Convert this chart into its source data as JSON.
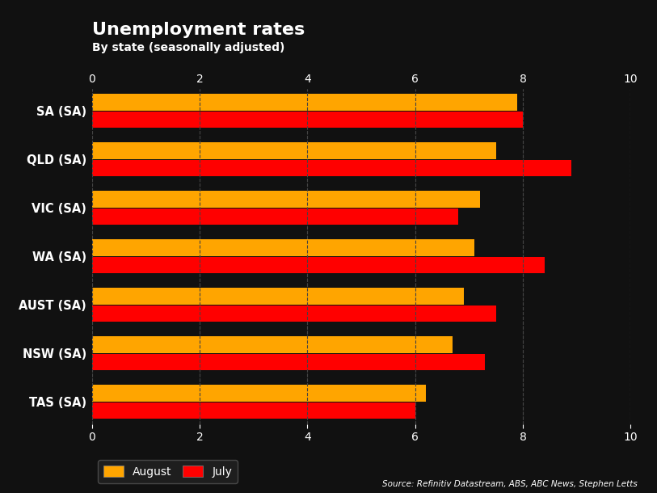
{
  "title": "Unemployment rates",
  "subtitle": "By state (seasonally adjusted)",
  "states": [
    "SA (SA)",
    "QLD (SA)",
    "VIC (SA)",
    "WA (SA)",
    "AUST (SA)",
    "NSW (SA)",
    "TAS (SA)"
  ],
  "august_values": [
    7.9,
    7.5,
    7.2,
    7.1,
    6.9,
    6.7,
    6.2
  ],
  "july_values": [
    8.0,
    8.9,
    6.8,
    8.4,
    7.5,
    7.3,
    6.0
  ],
  "august_color": "#FFA500",
  "july_color": "#FF0000",
  "background_color": "#111111",
  "text_color": "#ffffff",
  "grid_color": "#444444",
  "xlim": [
    0,
    10
  ],
  "xticks": [
    0,
    2,
    4,
    6,
    8,
    10
  ],
  "source_text": "Source: Refinitiv Datastream, ABS, ABC News, Stephen Letts",
  "legend_august": "August",
  "legend_july": "July"
}
